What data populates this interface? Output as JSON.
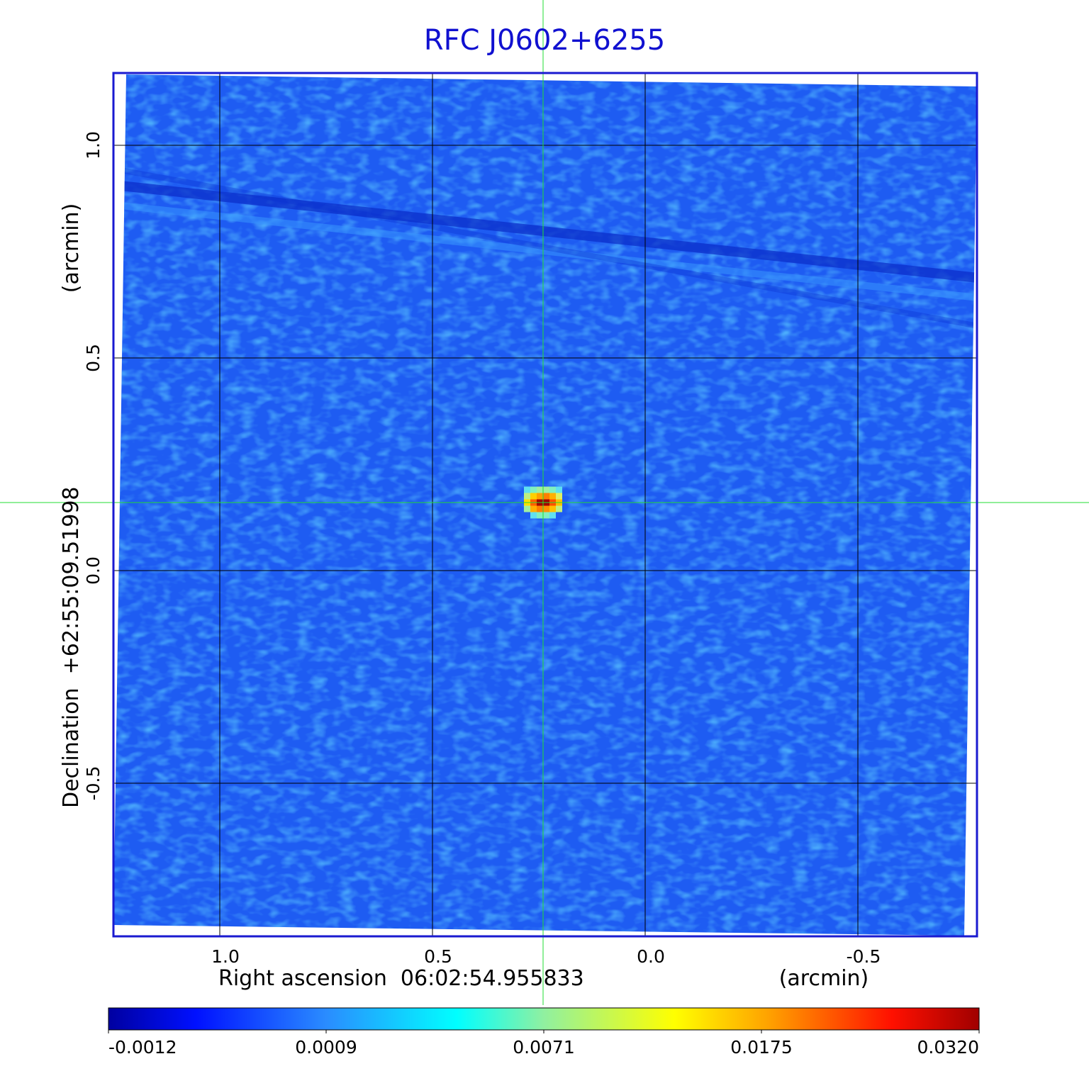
{
  "chart_data": {
    "type": "image",
    "title": "RFC J0602+6255",
    "x_label": "Right ascension  06:02:54.955833",
    "x_unit": "(arcmin)",
    "y_label": "Declination  +62:55:09.51998",
    "y_unit": "(arcmin)",
    "xlim": [
      1.25,
      -0.78
    ],
    "ylim": [
      -0.86,
      1.17
    ],
    "xticks": [
      {
        "value": 1,
        "label": "1.0"
      },
      0.5,
      {
        "value": 0,
        "label": "0.0"
      },
      -0.5
    ],
    "yticks": [
      {
        "value": 1,
        "label": "1.0"
      },
      0.5,
      {
        "value": 0,
        "label": "0.0"
      },
      -0.5
    ],
    "grid": true,
    "source": {
      "x": 0.24,
      "y": 0.16,
      "peak": 0.032
    },
    "colorbar": {
      "clim": [
        -0.0012,
        0.032
      ],
      "ticks": [
        -0.0012,
        0.0009,
        0.0071,
        0.0175,
        {
          "value": 0.032,
          "label": "0.0320"
        }
      ]
    }
  }
}
